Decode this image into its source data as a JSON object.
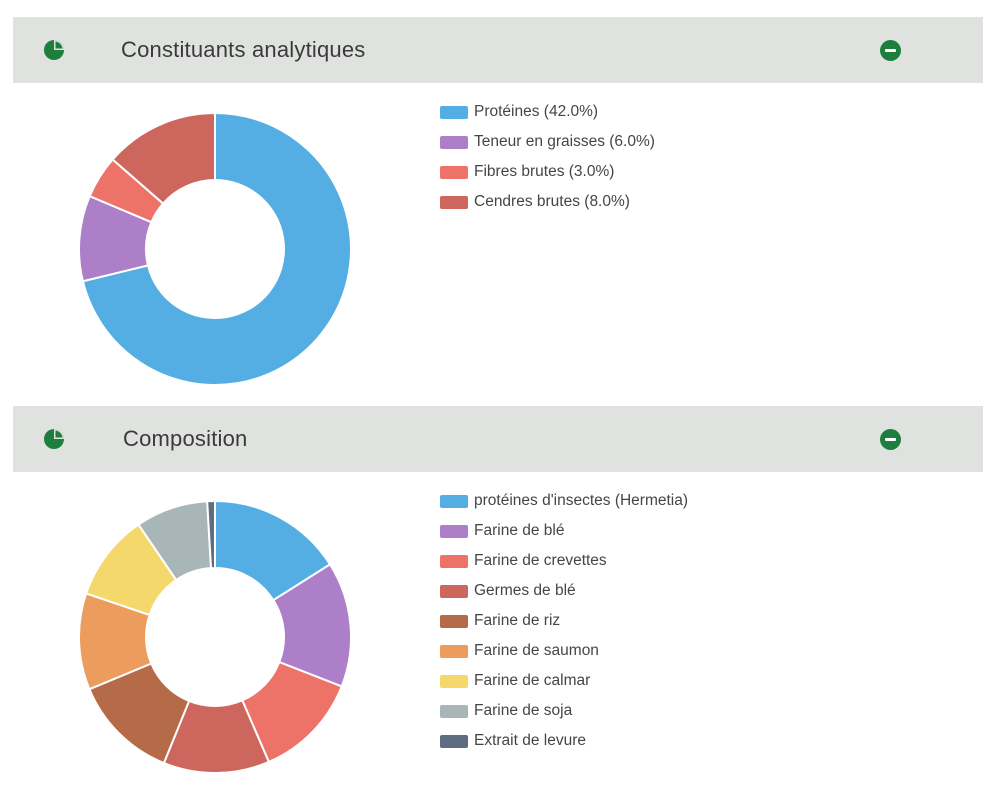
{
  "panels": [
    {
      "title": "Constituants analytiques",
      "icon": "pie-chart-icon",
      "collapse_icon": "minus-circle-icon",
      "legend": [
        {
          "label": "Protéines (42.0%)",
          "color": "#54aee4"
        },
        {
          "label": "Teneur en graisses (6.0%)",
          "color": "#ad7fc8"
        },
        {
          "label": "Fibres brutes (3.0%)",
          "color": "#ed7368"
        },
        {
          "label": "Cendres brutes (8.0%)",
          "color": "#cd665c"
        }
      ]
    },
    {
      "title": "Composition",
      "icon": "pie-chart-icon",
      "collapse_icon": "minus-circle-icon",
      "legend": [
        {
          "label": "protéines d'insectes (Hermetia)",
          "color": "#54aee4"
        },
        {
          "label": "Farine de blé",
          "color": "#ad7fc8"
        },
        {
          "label": "Farine de crevettes",
          "color": "#ed7368"
        },
        {
          "label": "Germes de blé",
          "color": "#cd665c"
        },
        {
          "label": "Farine de riz",
          "color": "#b56b48"
        },
        {
          "label": "Farine de saumon",
          "color": "#ec9c5c"
        },
        {
          "label": "Farine de calmar",
          "color": "#f5d86b"
        },
        {
          "label": "Farine de soja",
          "color": "#a9b6b7"
        },
        {
          "label": "Extrait de levure",
          "color": "#5e6e80"
        }
      ]
    }
  ],
  "chart_data": [
    {
      "type": "pie",
      "style": "donut",
      "title": "Constituants analytiques",
      "categories": [
        "Protéines",
        "Teneur en graisses",
        "Fibres brutes",
        "Cendres brutes"
      ],
      "values": [
        42.0,
        6.0,
        3.0,
        8.0
      ],
      "colors": [
        "#54aee4",
        "#ad7fc8",
        "#ed7368",
        "#cd665c"
      ],
      "legend": "right"
    },
    {
      "type": "pie",
      "style": "donut",
      "title": "Composition",
      "categories": [
        "protéines d'insectes (Hermetia)",
        "Farine de blé",
        "Farine de crevettes",
        "Germes de blé",
        "Farine de riz",
        "Farine de saumon",
        "Farine de calmar",
        "Farine de soja",
        "Extrait de levure"
      ],
      "values": [
        14,
        13,
        11,
        11,
        11,
        10,
        9,
        7.5,
        0.8
      ],
      "colors": [
        "#54aee4",
        "#ad7fc8",
        "#ed7368",
        "#cd665c",
        "#b56b48",
        "#ec9c5c",
        "#f5d86b",
        "#a9b6b7",
        "#5e6e80"
      ],
      "legend": "right"
    }
  ]
}
